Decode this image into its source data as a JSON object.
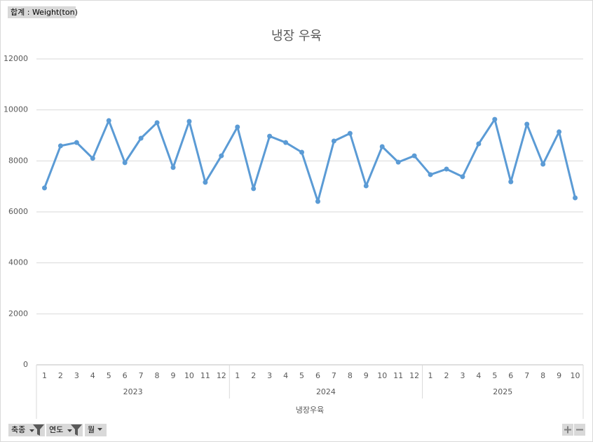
{
  "chart_data": {
    "type": "line",
    "title": "냉장 우육",
    "value_field": "합계 : Weight(ton)",
    "x_label": "냉장우육",
    "field_buttons": [
      "축종",
      "연도",
      "월"
    ],
    "groups": [
      {
        "name": "2023",
        "categories": [
          "1",
          "2",
          "3",
          "4",
          "5",
          "6",
          "7",
          "8",
          "9",
          "10",
          "11",
          "12"
        ]
      },
      {
        "name": "2024",
        "categories": [
          "1",
          "2",
          "3",
          "4",
          "5",
          "6",
          "7",
          "8",
          "9",
          "10",
          "11",
          "12"
        ]
      },
      {
        "name": "2025",
        "categories": [
          "1",
          "2",
          "3",
          "4",
          "5",
          "6",
          "7",
          "8",
          "9",
          "10"
        ]
      }
    ],
    "series": [
      {
        "color": "#5b9bd5",
        "values": [
          6940,
          8590,
          8720,
          8100,
          9580,
          7930,
          8890,
          9500,
          7740,
          9550,
          7160,
          8200,
          9330,
          6910,
          8970,
          8720,
          8340,
          6410,
          8780,
          9080,
          7020,
          8560,
          7950,
          8200,
          7460,
          7680,
          7380,
          8670,
          9630,
          7180,
          9440,
          7870,
          9140,
          6550
        ]
      }
    ],
    "ylim": [
      0,
      12000
    ],
    "yticks": [
      0,
      2000,
      4000,
      6000,
      8000,
      10000,
      12000
    ],
    "grid": true
  }
}
